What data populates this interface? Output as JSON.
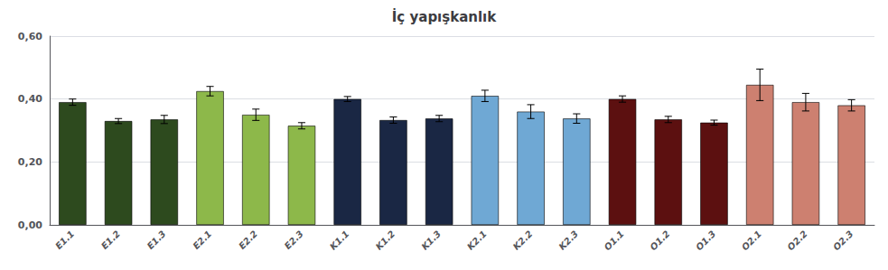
{
  "chart_data": {
    "type": "bar",
    "title": "İç yapışkanlık",
    "categories": [
      "E1.1",
      "E1.2",
      "E1.3",
      "E2.1",
      "E2.2",
      "E2.3",
      "K1.1",
      "K1.2",
      "K1.3",
      "K2.1",
      "K2.2",
      "K2.3",
      "O1.1",
      "O1.2",
      "O1.3",
      "O2.1",
      "O2.2",
      "O2.3"
    ],
    "values": [
      0.39,
      0.33,
      0.335,
      0.425,
      0.35,
      0.315,
      0.4,
      0.333,
      0.338,
      0.41,
      0.36,
      0.338,
      0.4,
      0.335,
      0.325,
      0.445,
      0.39,
      0.38
    ],
    "errors": [
      0.01,
      0.008,
      0.013,
      0.015,
      0.018,
      0.01,
      0.008,
      0.01,
      0.01,
      0.018,
      0.022,
      0.015,
      0.01,
      0.01,
      0.008,
      0.05,
      0.028,
      0.018
    ],
    "colors": [
      "#2d4a1e",
      "#2d4a1e",
      "#2d4a1e",
      "#8db84a",
      "#8db84a",
      "#8db84a",
      "#1a2744",
      "#1a2744",
      "#1a2744",
      "#6fa8d4",
      "#6fa8d4",
      "#6fa8d4",
      "#5c1010",
      "#5c1010",
      "#5c1010",
      "#cd8070",
      "#cd8070",
      "#cd8070"
    ],
    "ylim": [
      0.0,
      0.6
    ],
    "yticks": [
      {
        "value": 0.0,
        "label": "0,00"
      },
      {
        "value": 0.2,
        "label": "0,20"
      },
      {
        "value": 0.4,
        "label": "0,40"
      },
      {
        "value": 0.6,
        "label": "0,60"
      }
    ],
    "grid": true
  }
}
